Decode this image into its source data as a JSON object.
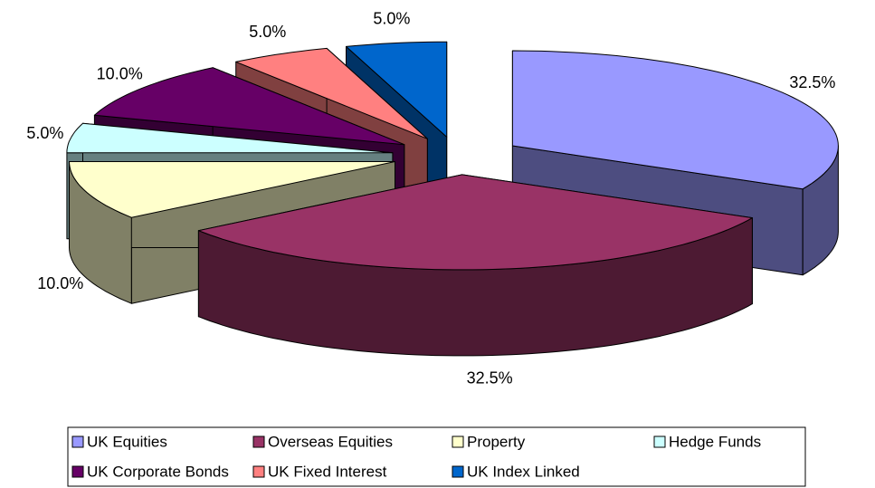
{
  "chart_data": {
    "type": "pie",
    "categories": [
      "UK Equities",
      "Overseas Equities",
      "Property",
      "Hedge Funds",
      "UK Corporate Bonds",
      "UK Fixed Interest",
      "UK Index Linked"
    ],
    "values": [
      32.5,
      32.5,
      10,
      5,
      10,
      5,
      5
    ],
    "value_labels": [
      "32.5%",
      "32.5%",
      "10.0%",
      "5.0%",
      "10.0%",
      "5.0%",
      "5.0%"
    ],
    "colors": [
      "#9999ff",
      "#993366",
      "#ffffcc",
      "#ccffff",
      "#660066",
      "#ff8080",
      "#0066cc"
    ],
    "legend": "bottom"
  }
}
